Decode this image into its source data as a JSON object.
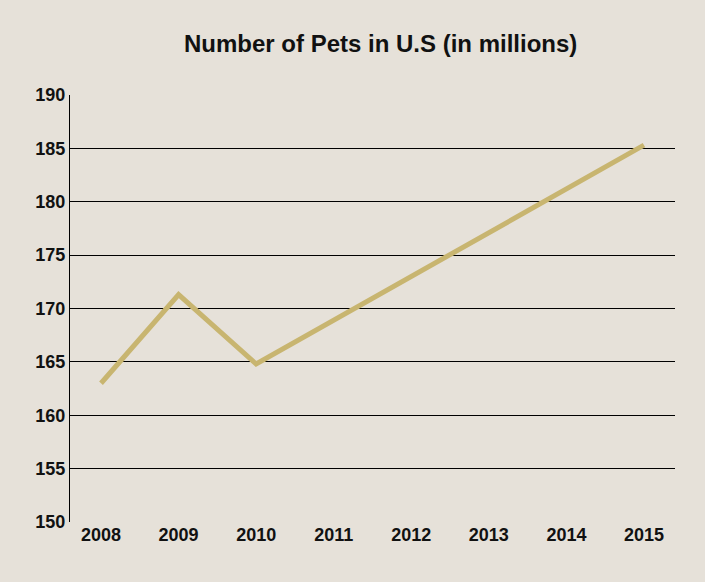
{
  "chart_data": {
    "type": "line",
    "title": "Number of Pets in U.S (in millions)",
    "categories": [
      "2008",
      "2009",
      "2010",
      "2011",
      "2012",
      "2013",
      "2014",
      "2015"
    ],
    "values": [
      163,
      171.3,
      164.8,
      168.9,
      173,
      177.1,
      181.2,
      185.3
    ],
    "color": "#c8b570",
    "ylim": [
      150,
      190
    ],
    "yticks": [
      150,
      155,
      160,
      165,
      170,
      175,
      180,
      185,
      190
    ],
    "grid": true
  }
}
